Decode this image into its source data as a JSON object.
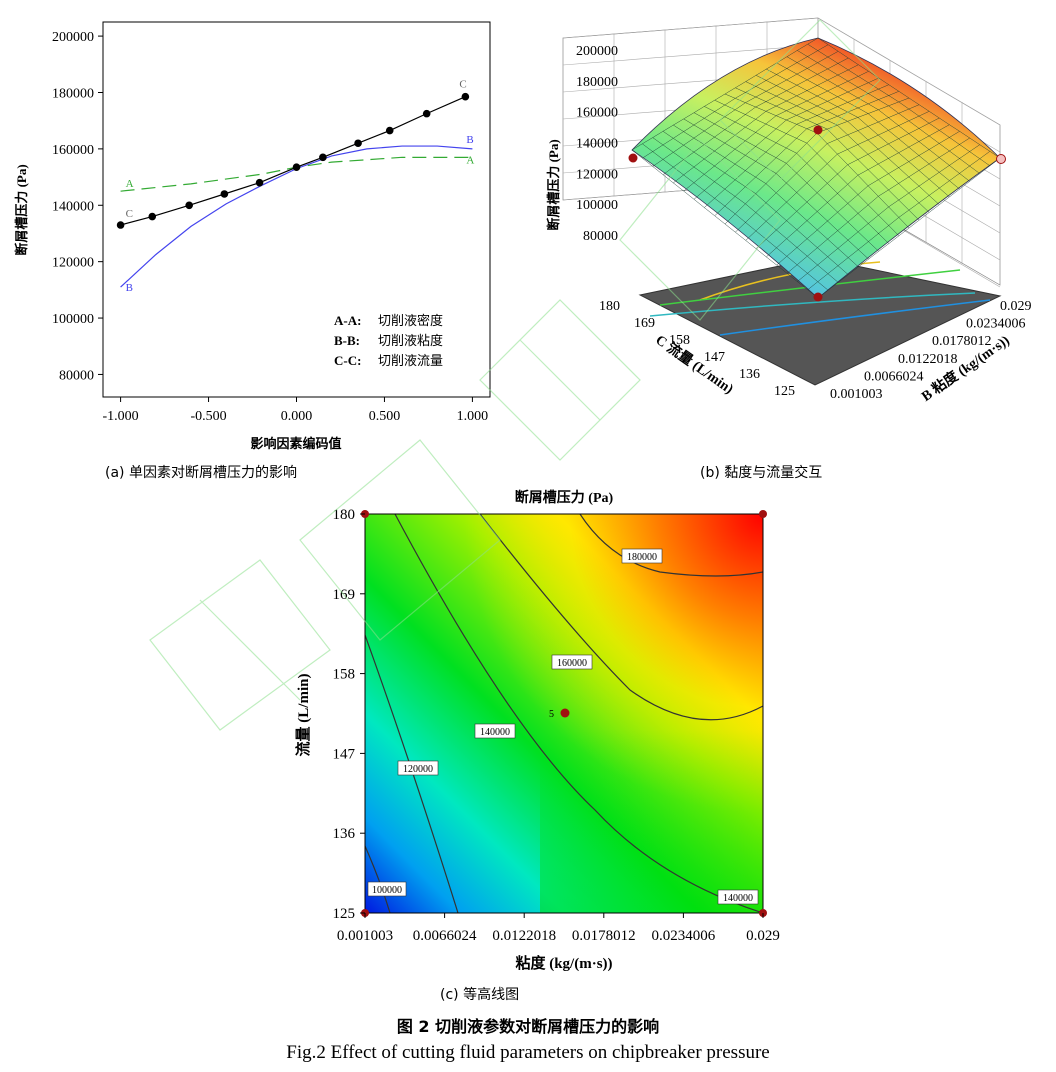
{
  "chart_data": [
    {
      "id": "a",
      "type": "line",
      "ylabel": "断屑槽压力 (Pa)",
      "xlabel": "影响因素编码值",
      "xticks": [
        "-1.000",
        "-0.500",
        "0.000",
        "0.500",
        "1.000"
      ],
      "yticks": [
        "80000",
        "100000",
        "120000",
        "140000",
        "160000",
        "180000",
        "200000"
      ],
      "xlim": [
        -1.1,
        1.1
      ],
      "ylim": [
        72000,
        205000
      ],
      "series": [
        {
          "name": "A",
          "color": "#33aa33",
          "style": "dashed",
          "label_start": "A",
          "label_end": "A",
          "x": [
            -1.0,
            -0.6,
            -0.2,
            0.0,
            0.2,
            0.6,
            1.0
          ],
          "y": [
            145000,
            147600,
            151000,
            153500,
            155300,
            157000,
            157000
          ]
        },
        {
          "name": "B",
          "color": "#4444ee",
          "style": "solid",
          "label_start": "B",
          "label_end": "B",
          "x": [
            -1.0,
            -0.8,
            -0.6,
            -0.4,
            -0.2,
            0.0,
            0.2,
            0.4,
            0.6,
            0.8,
            1.0
          ],
          "y": [
            111000,
            122500,
            132500,
            140500,
            147000,
            153000,
            157500,
            160000,
            161000,
            161000,
            160000
          ]
        },
        {
          "name": "C",
          "color": "#000000",
          "style": "markers",
          "label_start": "C",
          "label_end": "C",
          "x": [
            -1.0,
            -0.82,
            -0.61,
            -0.41,
            -0.21,
            0.0,
            0.15,
            0.35,
            0.53,
            0.74,
            0.96
          ],
          "y": [
            133000,
            136000,
            140000,
            144000,
            148000,
            153500,
            157000,
            162000,
            166500,
            172500,
            178500
          ]
        }
      ],
      "legend": [
        {
          "key": "A-A:",
          "label": "切削液密度"
        },
        {
          "key": "B-B:",
          "label": "切削液粘度"
        },
        {
          "key": "C-C:",
          "label": "切削液流量"
        }
      ],
      "caption": "(a)   单因素对断屑槽压力的影响"
    },
    {
      "id": "b",
      "type": "surface",
      "zlabel": "断屑槽压力 (Pa)",
      "zticks": [
        "80000",
        "100000",
        "120000",
        "140000",
        "160000",
        "180000",
        "200000"
      ],
      "xlabel": "B 粘度 (kg/(m·s))",
      "xticks": [
        "0.001003",
        "0.0066024",
        "0.0122018",
        "0.0178012",
        "0.0234006",
        "0.029"
      ],
      "ylabel": "C 流量 (L/min)",
      "yticks": [
        "125",
        "136",
        "147",
        "158",
        "169",
        "180"
      ],
      "zlim": [
        80000,
        200000
      ],
      "caption": "(b)     黏度与流量交互"
    },
    {
      "id": "c",
      "type": "heatmap",
      "title": "断屑槽压力 (Pa)",
      "xlabel": "粘度 (kg/(m·s))",
      "ylabel": "流量 (L/min)",
      "xticks": [
        "0.001003",
        "0.0066024",
        "0.0122018",
        "0.0178012",
        "0.0234006",
        "0.029"
      ],
      "yticks": [
        "125",
        "136",
        "147",
        "158",
        "169",
        "180"
      ],
      "xlim": [
        0.001003,
        0.029
      ],
      "ylim": [
        125,
        180
      ],
      "contour_labels": [
        "100000",
        "120000",
        "140000",
        "160000",
        "180000",
        "140000"
      ],
      "center_point_label": "5",
      "caption": "(c)     等高线图"
    }
  ],
  "figure": {
    "title_cn": "图 2   切削液参数对断屑槽压力的影响",
    "title_en": "Fig.2    Effect of cutting fluid parameters on chipbreaker pressure"
  }
}
